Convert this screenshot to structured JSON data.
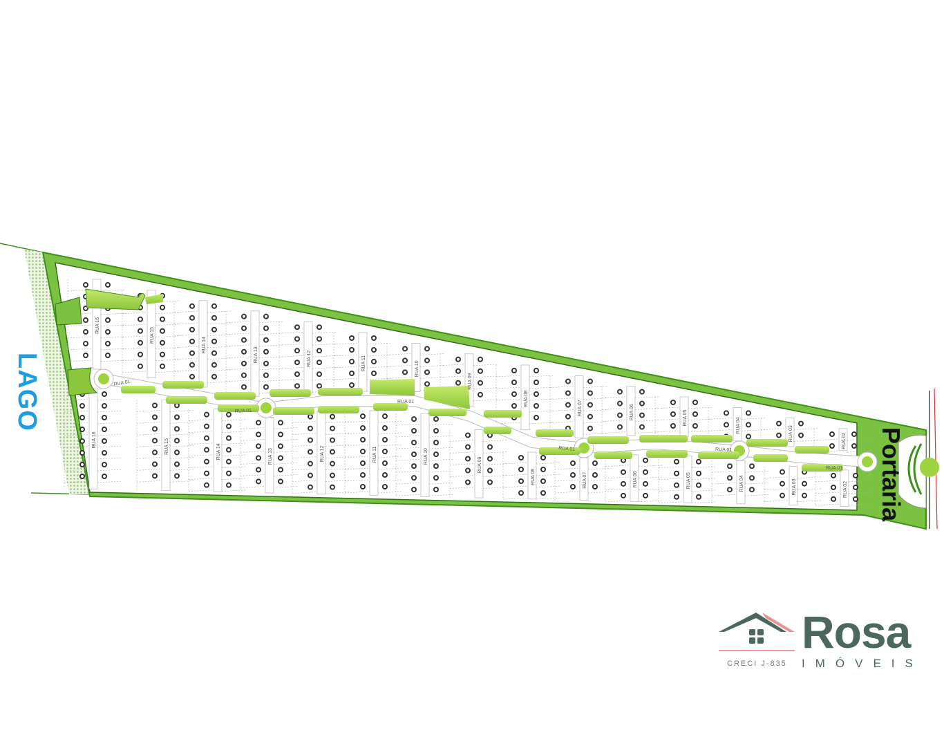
{
  "map": {
    "lake_label": "LAGO",
    "gate_label": "Portaria",
    "main_street_label": "RUA 01",
    "upper_streets": [
      "RUA 16",
      "RUA 15",
      "RUA 14",
      "RUA 13",
      "RUA 12",
      "RUA 11",
      "RUA 10",
      "RUA 09",
      "RUA 08",
      "RUA 07",
      "RUA 06",
      "RUA 05",
      "RUA 04",
      "RUA 03",
      "RUA 02"
    ],
    "lower_streets": [
      "RUA 16",
      "RUA 15",
      "RUA 14",
      "RUA 13",
      "RUA 12",
      "RUA 11",
      "RUA 10",
      "RUA 09",
      "RUA 08",
      "RUA 07",
      "RUA 06",
      "RUA 05",
      "RUA 04",
      "RUA 03",
      "RUA 02"
    ],
    "colors": {
      "green_area": "#7cc242",
      "green_border": "#3f8f1c",
      "green_island": "#9fd33f",
      "lake_label": "#1e9ee0",
      "lot_dot": "#333333"
    }
  },
  "logo": {
    "brand": "Rosa",
    "subtitle": "IMÓVEIS",
    "registration": "CRECI J-835",
    "colors": {
      "primary": "#4b675f",
      "roof_accent": "#e07070"
    }
  }
}
